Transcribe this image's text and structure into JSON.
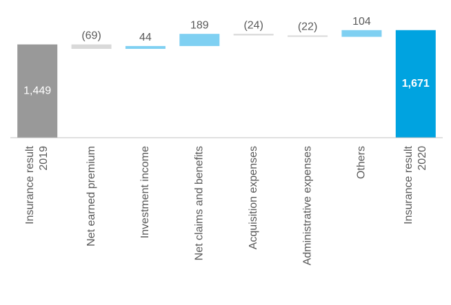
{
  "chart_data": {
    "type": "waterfall",
    "categories": [
      "Insurance result 2019",
      "Net earned premium",
      "Investment income",
      "Net claims and benefits",
      "Acquisition expenses",
      "Administrative expenses",
      "Others",
      "Insurance result 2020"
    ],
    "values": [
      1449,
      -69,
      44,
      189,
      -24,
      -22,
      104,
      1671
    ],
    "value_labels": [
      "1,449",
      "(69)",
      "44",
      "189",
      "(24)",
      "(22)",
      "104",
      "1,671"
    ],
    "measure": [
      "total",
      "relative",
      "relative",
      "relative",
      "relative",
      "relative",
      "relative",
      "total"
    ],
    "colors": {
      "start_total": "#999999",
      "end_total": "#00a3e0",
      "increase": "#7fd0f2",
      "decrease": "#d9d9d9"
    }
  }
}
